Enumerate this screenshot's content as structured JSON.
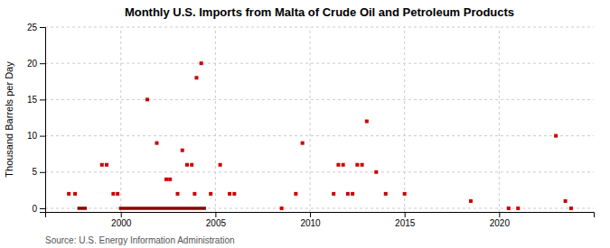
{
  "chart_data": {
    "type": "scatter",
    "title": "Monthly U.S. Imports from Malta of Crude Oil and Petroleum Products",
    "ylabel": "Thousand Barrels per Day",
    "source": "Source: U.S. Energy Information Administration",
    "x": [
      1997.25,
      1997.58,
      1999.0,
      1999.25,
      1999.6,
      1999.83,
      2001.4,
      2001.9,
      2002.4,
      2002.6,
      2003.0,
      2003.25,
      2003.5,
      2003.75,
      2003.9,
      2004.0,
      2004.25,
      2004.75,
      2005.25,
      2005.75,
      2006.0,
      2009.25,
      2009.6,
      2011.25,
      2011.5,
      2011.75,
      2012.0,
      2012.25,
      2012.5,
      2012.75,
      2013.0,
      2013.5,
      2014.0,
      2015.0,
      2018.5,
      2023.0,
      2023.5,
      2008.5,
      2020.5,
      2021.0,
      2023.8
    ],
    "values": [
      2,
      2,
      6,
      6,
      2,
      2,
      15,
      9,
      4,
      4,
      2,
      8,
      6,
      6,
      2,
      18,
      20,
      2,
      6,
      2,
      2,
      2,
      9,
      2,
      6,
      6,
      2,
      2,
      6,
      6,
      12,
      5,
      2,
      2,
      1,
      10,
      1,
      0,
      0,
      0,
      0
    ],
    "color": "#cc0000",
    "marker": "square",
    "segments": [
      {
        "type": "line",
        "x": [
          1997.7,
          1998.2
        ],
        "values": [
          0,
          0
        ],
        "color": "#8b0000"
      },
      {
        "type": "line",
        "x": [
          1999.9,
          2004.5
        ],
        "values": [
          0,
          0
        ],
        "color": "#8b0000"
      }
    ],
    "xlim": [
      1996.0,
      2025.0
    ],
    "xticks": [
      2000,
      2005,
      2010,
      2015,
      2020
    ],
    "ylim": [
      -0.5,
      25
    ],
    "yticks": [
      0,
      5,
      10,
      15,
      20,
      25
    ],
    "grid": true
  }
}
